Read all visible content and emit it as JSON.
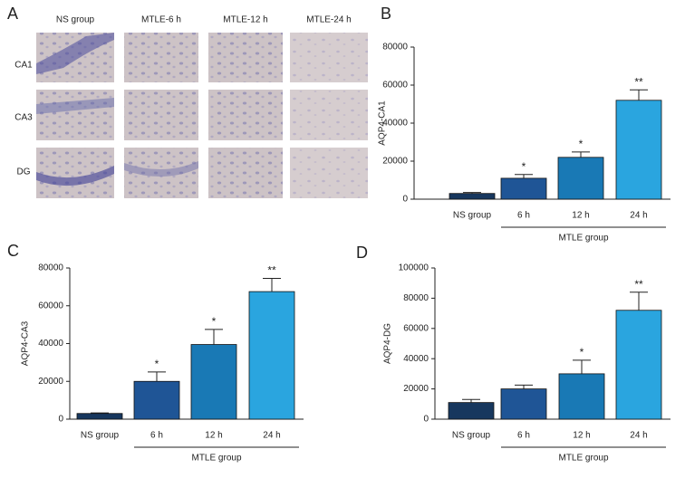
{
  "panel_a": {
    "label": "A",
    "columns": [
      "NS group",
      "MTLE-6 h",
      "MTLE-12 h",
      "MTLE-24 h"
    ],
    "rows": [
      "CA1",
      "CA3",
      "DG"
    ]
  },
  "chart_data": [
    {
      "type": "bar",
      "label": "B",
      "ylabel": "AQP4-CA1",
      "categories": [
        "NS group",
        "6 h",
        "12 h",
        "24 h"
      ],
      "values": [
        3000,
        11000,
        22000,
        52000
      ],
      "errors": [
        500,
        2000,
        2800,
        5500
      ],
      "significance": [
        null,
        "*",
        "*",
        "**"
      ],
      "colors": [
        "#17375e",
        "#1f5596",
        "#1979b5",
        "#2aa5df"
      ],
      "group_label": "MTLE group",
      "ylim": [
        0,
        80000
      ],
      "yticks": [
        0,
        20000,
        40000,
        60000,
        80000
      ]
    },
    {
      "type": "bar",
      "label": "C",
      "ylabel": "AQP4-CA3",
      "categories": [
        "NS group",
        "6 h",
        "12 h",
        "24 h"
      ],
      "values": [
        3000,
        20000,
        39500,
        67500
      ],
      "errors": [
        300,
        5000,
        8000,
        7000
      ],
      "significance": [
        null,
        "*",
        "*",
        "**"
      ],
      "colors": [
        "#17375e",
        "#1f5596",
        "#1979b5",
        "#2aa5df"
      ],
      "group_label": "MTLE group",
      "ylim": [
        0,
        80000
      ],
      "yticks": [
        0,
        20000,
        40000,
        60000,
        80000
      ]
    },
    {
      "type": "bar",
      "label": "D",
      "ylabel": "AQP4-DG",
      "categories": [
        "NS group",
        "6 h",
        "12 h",
        "24 h"
      ],
      "values": [
        11000,
        20000,
        30000,
        72000
      ],
      "errors": [
        2000,
        2500,
        9000,
        12000
      ],
      "significance": [
        null,
        null,
        "*",
        "**"
      ],
      "colors": [
        "#17375e",
        "#1f5596",
        "#1979b5",
        "#2aa5df"
      ],
      "group_label": "MTLE group",
      "ylim": [
        0,
        100000
      ],
      "yticks": [
        0,
        20000,
        40000,
        60000,
        80000,
        100000
      ]
    }
  ]
}
